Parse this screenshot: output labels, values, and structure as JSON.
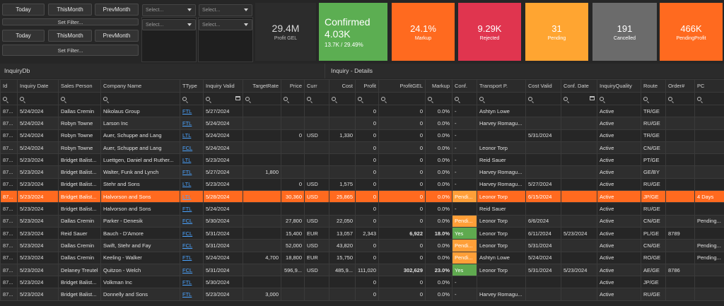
{
  "filters": {
    "row1": {
      "today": "Today",
      "this_month": "ThisMonth",
      "prev_month": "PrevMonth",
      "set_filter": "Set Filter..."
    },
    "row2": {
      "today": "Today",
      "this_month": "ThisMonth",
      "prev_month": "PrevMonth",
      "set_filter": "Set Filter..."
    },
    "select_placeholder": "Select..."
  },
  "kpis": {
    "profit": {
      "value": "29.4M",
      "label": "Profit GEL",
      "color": "#2b2b2b"
    },
    "confirmed": {
      "title": "Confirmed",
      "value": "4.03K",
      "sub": "13.7K / 29.49%",
      "color": "#5cae52"
    },
    "markup": {
      "value": "24.1%",
      "label": "Markup",
      "color": "#ff6a1f"
    },
    "rejected": {
      "value": "9.29K",
      "label": "Rejected",
      "color": "#e0354f"
    },
    "pending": {
      "value": "31",
      "label": "Pending",
      "color": "#ffa531"
    },
    "cancelled": {
      "value": "191",
      "label": "Cancelled",
      "color": "#6b6b6b"
    },
    "pending_profit": {
      "value": "466K",
      "label": "PendingProfit",
      "color": "#ff6a1f"
    }
  },
  "sections": {
    "left": "InquiryDb",
    "right": "Inquiry - Details"
  },
  "columns": [
    "Id",
    "Inquiry Date",
    "Sales Person",
    "Company Name",
    "TType",
    "Inquiry Valid",
    "TargetRate",
    "Price",
    "Curr",
    "Cost",
    "Profit",
    "ProfitGEL",
    "Markup",
    "Conf.",
    "Transport P.",
    "Cost Valid",
    "Conf. Date",
    "InquiryQuality",
    "Route",
    "Order#",
    "PC"
  ],
  "rows": [
    [
      "87...",
      "5/24/2024",
      "Dallas Cremin",
      "Nikolaus Group",
      "FTL",
      "5/27/2024",
      "",
      "",
      "",
      "",
      "0",
      "0",
      "0.0%",
      "-",
      "Ashtyn Lowe",
      "",
      "",
      "Active",
      "TR/GE",
      "",
      ""
    ],
    [
      "87...",
      "5/24/2024",
      "Robyn Towne",
      "Larson Inc",
      "FTL",
      "5/24/2024",
      "",
      "",
      "",
      "",
      "0",
      "0",
      "0.0%",
      "-",
      "Harvey Romagu...",
      "",
      "",
      "Active",
      "RU/GE",
      "",
      ""
    ],
    [
      "87...",
      "5/24/2024",
      "Robyn Towne",
      "Auer, Schuppe and Lang",
      "LTL",
      "5/24/2024",
      "",
      "0",
      "USD",
      "1,330",
      "0",
      "0",
      "0.0%",
      "-",
      "",
      "5/31/2024",
      "",
      "Active",
      "TR/GE",
      "",
      ""
    ],
    [
      "87...",
      "5/24/2024",
      "Robyn Towne",
      "Auer, Schuppe and Lang",
      "FCL",
      "5/24/2024",
      "",
      "",
      "",
      "",
      "0",
      "0",
      "0.0%",
      "-",
      "Leonor Torp",
      "",
      "",
      "Active",
      "CN/GE",
      "",
      ""
    ],
    [
      "87...",
      "5/23/2024",
      "Bridget Balist...",
      "Luettgen, Daniel and Ruther...",
      "LTL",
      "5/23/2024",
      "",
      "",
      "",
      "",
      "0",
      "0",
      "0.0%",
      "-",
      "Reid Sauer",
      "",
      "",
      "Active",
      "PT/GE",
      "",
      ""
    ],
    [
      "87...",
      "5/23/2024",
      "Bridget Balist...",
      "Walter, Funk and Lynch",
      "FTL",
      "5/27/2024",
      "1,800",
      "",
      "",
      "",
      "0",
      "0",
      "0.0%",
      "-",
      "Harvey Romagu...",
      "",
      "",
      "Active",
      "GE/BY",
      "",
      ""
    ],
    [
      "87...",
      "5/23/2024",
      "Bridget Balist...",
      "Stehr and Sons",
      "LTL",
      "5/23/2024",
      "",
      "0",
      "USD",
      "1,575",
      "0",
      "0",
      "0.0%",
      "-",
      "Harvey Romagu...",
      "5/27/2024",
      "",
      "Active",
      "RU/GE",
      "",
      ""
    ],
    [
      "87...",
      "5/23/2024",
      "Bridget Balist...",
      "Halvorson and Sons",
      "LTL",
      "5/28/2024",
      "",
      "30,360",
      "USD",
      "25,865",
      "0",
      "0",
      "0.0%",
      "Pendi...",
      "Leonor Torp",
      "6/15/2024",
      "",
      "Active",
      "JP/GE",
      "",
      "4 Days"
    ],
    [
      "87...",
      "5/23/2024",
      "Bridget Balist...",
      "Halvorson and Sons",
      "FTL",
      "5/24/2024",
      "",
      "",
      "",
      "",
      "0",
      "0",
      "0.0%",
      "-",
      "Reid Sauer",
      "",
      "",
      "Active",
      "RU/GE",
      "",
      ""
    ],
    [
      "87...",
      "5/23/2024",
      "Dallas Cremin",
      "Parker - Denesik",
      "FCL",
      "5/30/2024",
      "",
      "27,800",
      "USD",
      "22,050",
      "0",
      "0",
      "0.0%",
      "Pendi...",
      "Leonor Torp",
      "6/6/2024",
      "",
      "Active",
      "CN/GE",
      "",
      "Pending..."
    ],
    [
      "87...",
      "5/23/2024",
      "Reid Sauer",
      "Bauch - D'Amore",
      "FCL",
      "5/31/2024",
      "",
      "15,400",
      "EUR",
      "13,057",
      "2,343",
      "6,922",
      "18.0%",
      "Yes",
      "Leonor Torp",
      "6/11/2024",
      "5/23/2024",
      "Active",
      "PL/GE",
      "8789",
      ""
    ],
    [
      "87...",
      "5/23/2024",
      "Dallas Cremin",
      "Swift, Stehr and Fay",
      "FCL",
      "5/31/2024",
      "",
      "52,000",
      "USD",
      "43,820",
      "0",
      "0",
      "0.0%",
      "Pendi...",
      "Leonor Torp",
      "5/31/2024",
      "",
      "Active",
      "CN/GE",
      "",
      "Pending..."
    ],
    [
      "87...",
      "5/23/2024",
      "Dallas Cremin",
      "Keeling - Walker",
      "FTL",
      "5/24/2024",
      "4,700",
      "18,800",
      "EUR",
      "15,750",
      "0",
      "0",
      "0.0%",
      "Pendi...",
      "Ashtyn Lowe",
      "5/24/2024",
      "",
      "Active",
      "RO/GE",
      "",
      "Pending..."
    ],
    [
      "87...",
      "5/23/2024",
      "Delaney Treutel",
      "Quitzon - Welch",
      "FCL",
      "5/31/2024",
      "",
      "596,9...",
      "USD",
      "485,9...",
      "111,020",
      "302,629",
      "23.0%",
      "Yes",
      "Leonor Torp",
      "5/31/2024",
      "5/23/2024",
      "Active",
      "AE/GE",
      "8786",
      ""
    ],
    [
      "87...",
      "5/23/2024",
      "Bridget Balist...",
      "Volkman Inc",
      "FTL",
      "5/30/2024",
      "",
      "",
      "",
      "",
      "0",
      "0",
      "0.0%",
      "-",
      "",
      "",
      "",
      "Active",
      "JP/GE",
      "",
      ""
    ],
    [
      "87...",
      "5/23/2024",
      "Bridget Balist...",
      "Donnelly and Sons",
      "FTL",
      "5/23/2024",
      "3,000",
      "",
      "",
      "",
      "0",
      "0",
      "0.0%",
      "-",
      "Harvey Romagu...",
      "",
      "",
      "Active",
      "RU/GE",
      "",
      ""
    ]
  ],
  "selected_row": 7,
  "colors": {
    "selected": "#ff6a1f",
    "confirmed_yes": "#5fa94f",
    "pending": "#ff9f38",
    "link": "#4aa3ff"
  }
}
